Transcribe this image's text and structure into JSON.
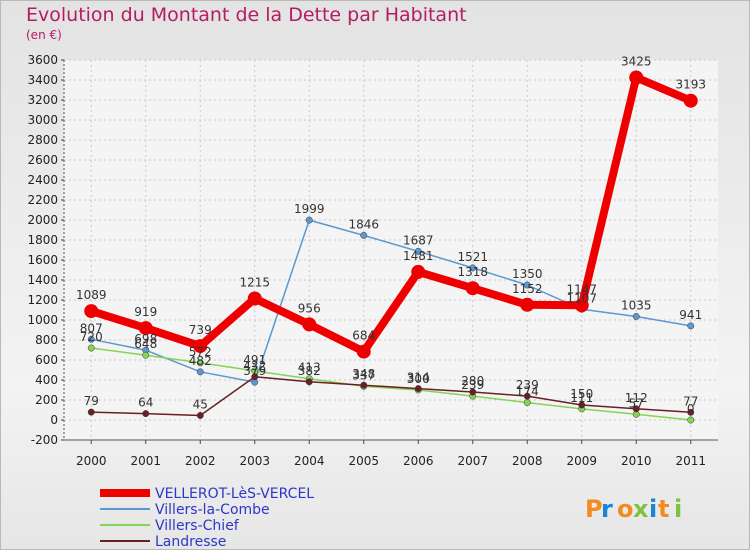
{
  "chart_data": {
    "type": "line",
    "title": "Evolution du Montant de la Dette par Habitant",
    "subtitle": "(en €)",
    "x": [
      "2000",
      "2001",
      "2002",
      "2003",
      "2004",
      "2005",
      "2006",
      "2007",
      "2008",
      "2009",
      "2010",
      "2011"
    ],
    "ylim": [
      -200,
      3600
    ],
    "yticks": [
      -200,
      0,
      200,
      400,
      600,
      800,
      1000,
      1200,
      1400,
      1600,
      1800,
      2000,
      2200,
      2400,
      2600,
      2800,
      3000,
      3200,
      3400,
      3600
    ],
    "grid": true,
    "legend_position": "bottom-left",
    "series": [
      {
        "name": "VELLEROT-LèS-VERCEL",
        "color": "#ee0000",
        "width": 8,
        "values": [
          1089,
          919,
          739,
          1215,
          956,
          684,
          1481,
          1318,
          1152,
          1147,
          3425,
          3193
        ]
      },
      {
        "name": "Villers-la-Combe",
        "color": "#5b98d0",
        "width": 1.5,
        "values": [
          807,
          698,
          482,
          379,
          1999,
          1846,
          1687,
          1521,
          1350,
          1107,
          1035,
          941
        ]
      },
      {
        "name": "Villers-Chief",
        "color": "#84d455",
        "width": 1.5,
        "values": [
          720,
          648,
          572,
          491,
          413,
          337,
          300,
          239,
          174,
          111,
          57,
          0
        ]
      },
      {
        "name": "Landresse",
        "color": "#6b1f24",
        "width": 1.5,
        "values": [
          79,
          64,
          45,
          432,
          382,
          348,
          314,
          280,
          239,
          150,
          112,
          77
        ]
      }
    ]
  },
  "logo": {
    "text": "Proxiti",
    "colors": [
      "#f28c1e",
      "#1b84d6",
      "#f28c1e",
      "#7dc242",
      "#1b84d6",
      "#f28c1e",
      "#7dc242"
    ]
  }
}
